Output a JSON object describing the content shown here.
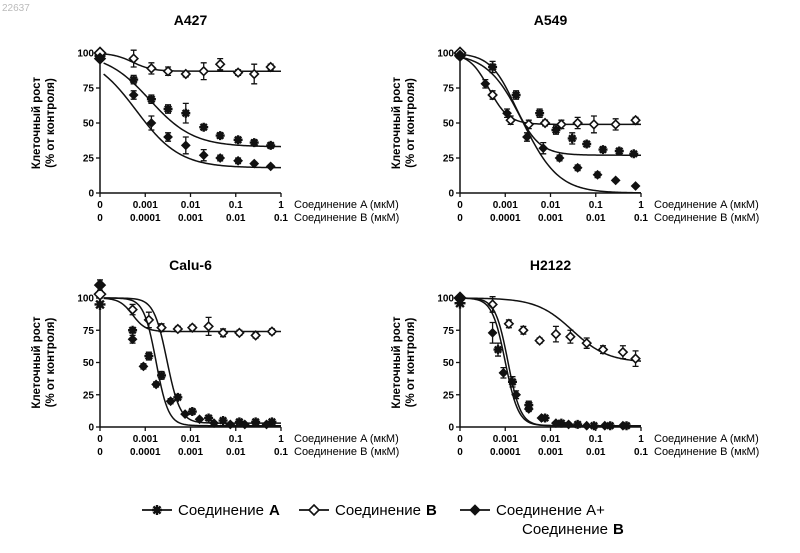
{
  "watermark": "22637",
  "legend": {
    "items": [
      {
        "key": "A",
        "label": "Соединение",
        "label_bold": "A"
      },
      {
        "key": "B",
        "label": "Соединение",
        "label_bold": "B"
      },
      {
        "key": "AB",
        "label": "Соединение A+",
        "label2": "Соединение",
        "label2_bold": "B"
      }
    ]
  },
  "chart_data": [
    {
      "type": "line",
      "title": "A427",
      "ylabel_line1": "Клеточный рост",
      "ylabel_line2": "(% от контроля)",
      "ylim": [
        0,
        100
      ],
      "yticks": [
        "0",
        "25",
        "50",
        "75",
        "100"
      ],
      "x_rows": [
        {
          "name": "Соединение A (мкМ)",
          "ticks": [
            "0",
            "0.001",
            "0.01",
            "0.1",
            "1"
          ]
        },
        {
          "name": "Соединение B (мкМ)",
          "ticks": [
            "0",
            "0.0001",
            "0.001",
            "0.01",
            "0.1"
          ]
        }
      ],
      "x_log": [
        0,
        0.25,
        0.5,
        0.75,
        1
      ],
      "series": [
        {
          "name": "Соединение A",
          "marker": "star",
          "x": [
            0,
            0.186,
            0.284,
            0.376,
            0.474,
            0.573,
            0.664,
            0.763,
            0.852,
            0.943
          ],
          "y": [
            98,
            81,
            67,
            60,
            57,
            47,
            41,
            38,
            36,
            34
          ],
          "err": [
            2,
            3,
            3,
            3,
            7,
            2,
            2,
            2,
            2,
            2
          ],
          "fit": {
            "bottom": 33,
            "top": 100,
            "ec50": 0.275,
            "hill": 0.9
          }
        },
        {
          "name": "Соединение B",
          "marker": "diamond-open",
          "x": [
            0,
            0.186,
            0.284,
            0.376,
            0.474,
            0.573,
            0.664,
            0.763,
            0.852,
            0.943
          ],
          "y": [
            100,
            96,
            89,
            87,
            85,
            87,
            92,
            86,
            85,
            90
          ],
          "err": [
            2,
            6,
            4,
            3,
            2,
            6,
            4,
            2,
            7,
            2
          ],
          "fit": {
            "bottom": 87,
            "top": 100,
            "ec50": 0.18,
            "hill": 2.0
          }
        },
        {
          "name": "Соединение A+Соединение B",
          "marker": "diamond-filled",
          "x": [
            0,
            0.186,
            0.284,
            0.376,
            0.474,
            0.573,
            0.664,
            0.763,
            0.852,
            0.943
          ],
          "y": [
            96,
            70,
            50,
            40,
            34,
            27,
            25,
            23,
            21,
            19
          ],
          "err": [
            2,
            3,
            5,
            3,
            6,
            4,
            2,
            2,
            1,
            1
          ],
          "fit": {
            "bottom": 18,
            "top": 100,
            "ec50": 0.2,
            "hill": 0.9
          }
        }
      ]
    },
    {
      "type": "line",
      "title": "A549",
      "ylabel_line1": "Клеточный рост",
      "ylabel_line2": "(% от контроля)",
      "ylim": [
        0,
        100
      ],
      "yticks": [
        "0",
        "25",
        "50",
        "75",
        "100"
      ],
      "x_rows": [
        {
          "name": "Соединение A (мкМ)",
          "ticks": [
            "0",
            "0.001",
            "0.01",
            "0.1",
            "1"
          ]
        },
        {
          "name": "Соединение B (мкМ)",
          "ticks": [
            "0",
            "0.0001",
            "0.001",
            "0.01",
            "0.1"
          ]
        }
      ],
      "x_log": [
        0,
        0.25,
        0.5,
        0.75,
        1
      ],
      "series": [
        {
          "name": "Соединение A",
          "marker": "star",
          "x": [
            0,
            0.18,
            0.31,
            0.44,
            0.53,
            0.62,
            0.7,
            0.79,
            0.88,
            0.96
          ],
          "y": [
            99,
            90,
            70,
            57,
            45,
            39,
            35,
            31,
            30,
            28
          ],
          "err": [
            2,
            4,
            3,
            3,
            3,
            4,
            2,
            2,
            2,
            1
          ],
          "fit": {
            "bottom": 27,
            "top": 100,
            "ec50": 0.3,
            "hill": 1.6
          }
        },
        {
          "name": "Соединение B",
          "marker": "diamond-open",
          "x": [
            0,
            0.18,
            0.28,
            0.38,
            0.47,
            0.56,
            0.65,
            0.74,
            0.86,
            0.97
          ],
          "y": [
            100,
            70,
            52,
            49,
            50,
            49,
            50,
            49,
            49,
            52
          ],
          "err": [
            2,
            3,
            3,
            3,
            2,
            3,
            4,
            6,
            4,
            2
          ],
          "fit": {
            "bottom": 49,
            "top": 100,
            "ec50": 0.16,
            "hill": 2.0
          }
        },
        {
          "name": "Соединение A+Соединение B",
          "marker": "diamond-filled",
          "x": [
            0,
            0.14,
            0.26,
            0.37,
            0.46,
            0.55,
            0.65,
            0.76,
            0.86,
            0.97
          ],
          "y": [
            98,
            78,
            57,
            40,
            32,
            25,
            18,
            13,
            9,
            5
          ],
          "err": [
            2,
            3,
            3,
            3,
            4,
            2,
            2,
            2,
            1,
            1
          ],
          "fit": {
            "bottom": 0,
            "top": 100,
            "ec50": 0.35,
            "hill": 1.1
          }
        }
      ]
    },
    {
      "type": "line",
      "title": "Calu-6",
      "ylabel_line1": "Клеточный рост",
      "ylabel_line2": "(% от контроля)",
      "ylim": [
        0,
        100
      ],
      "yticks": [
        "0",
        "25",
        "50",
        "75",
        "100"
      ],
      "x_rows": [
        {
          "name": "Соединение A (мкМ)",
          "ticks": [
            "0",
            "0.001",
            "0.01",
            "0.1",
            "1"
          ]
        },
        {
          "name": "Соединение B (мкМ)",
          "ticks": [
            "0",
            "0.0001",
            "0.001",
            "0.01",
            "0.1"
          ]
        }
      ],
      "x_log": [
        0,
        0.25,
        0.5,
        0.75,
        1
      ],
      "series": [
        {
          "name": "Соединение A",
          "marker": "star",
          "x": [
            0,
            0.18,
            0.27,
            0.34,
            0.43,
            0.51,
            0.6,
            0.68,
            0.77,
            0.86,
            0.95
          ],
          "y": [
            95,
            75,
            55,
            40,
            23,
            12,
            7,
            5,
            4,
            4,
            4
          ],
          "err": [
            2,
            2,
            3,
            3,
            2,
            2,
            1,
            1,
            1,
            1,
            1
          ],
          "fit": {
            "bottom": 3,
            "top": 100,
            "ec50": 0.37,
            "hill": 3.0
          }
        },
        {
          "name": "Соединение B",
          "marker": "diamond-open",
          "x": [
            0,
            0.18,
            0.27,
            0.34,
            0.43,
            0.51,
            0.6,
            0.68,
            0.77,
            0.86,
            0.95
          ],
          "y": [
            103,
            91,
            83,
            77,
            76,
            77,
            78,
            73,
            73,
            71,
            74
          ],
          "err": [
            3,
            4,
            6,
            3,
            2,
            2,
            7,
            3,
            2,
            2,
            2
          ],
          "fit": {
            "bottom": 74,
            "top": 100,
            "ec50": 0.18,
            "hill": 3.0
          }
        },
        {
          "name": "Соединение A+Соединение B",
          "marker": "diamond-filled",
          "x": [
            0,
            0.18,
            0.24,
            0.31,
            0.39,
            0.47,
            0.55,
            0.63,
            0.72,
            0.8,
            0.92
          ],
          "y": [
            110,
            68,
            47,
            33,
            20,
            10,
            6,
            3,
            2,
            2,
            2
          ],
          "err": [
            4,
            3,
            2,
            2,
            2,
            1,
            1,
            1,
            1,
            1,
            1
          ],
          "fit": {
            "bottom": 1,
            "top": 100,
            "ec50": 0.31,
            "hill": 3.2
          }
        }
      ]
    },
    {
      "type": "line",
      "title": "H2122",
      "ylabel_line1": "Клеточный рост",
      "ylabel_line2": "(% от контроля)",
      "ylim": [
        0,
        100
      ],
      "yticks": [
        "0",
        "25",
        "50",
        "75",
        "100"
      ],
      "x_rows": [
        {
          "name": "Соединение A (мкМ)",
          "ticks": [
            "0",
            "0.001",
            "0.01",
            "0.1",
            "1"
          ]
        },
        {
          "name": "Соединение B (мкМ)",
          "ticks": [
            "0",
            "0.0001",
            "0.001",
            "0.01",
            "0.1"
          ]
        }
      ],
      "x_log": [
        0,
        0.25,
        0.5,
        0.75,
        1
      ],
      "series": [
        {
          "name": "Соединение A",
          "marker": "star",
          "x": [
            0,
            0.21,
            0.29,
            0.38,
            0.47,
            0.56,
            0.65,
            0.74,
            0.83,
            0.92
          ],
          "y": [
            96,
            60,
            35,
            17,
            7,
            3,
            2,
            1,
            1,
            1
          ],
          "err": [
            2,
            5,
            4,
            3,
            2,
            1,
            1,
            1,
            1,
            1
          ],
          "fit": {
            "bottom": 1,
            "top": 100,
            "ec50": 0.25,
            "hill": 3.0
          }
        },
        {
          "name": "Соединение B",
          "marker": "diamond-open",
          "x": [
            0,
            0.18,
            0.27,
            0.35,
            0.44,
            0.53,
            0.61,
            0.7,
            0.79,
            0.9,
            0.97
          ],
          "y": [
            100,
            95,
            80,
            75,
            67,
            72,
            70,
            65,
            60,
            58,
            53
          ],
          "err": [
            2,
            6,
            3,
            3,
            2,
            6,
            5,
            4,
            3,
            5,
            6
          ],
          "fit": {
            "bottom": 50,
            "top": 100,
            "ec50": 0.62,
            "hill": 1.1
          }
        },
        {
          "name": "Соединение A+Соединение B",
          "marker": "diamond-filled",
          "x": [
            0,
            0.18,
            0.24,
            0.31,
            0.38,
            0.45,
            0.53,
            0.6,
            0.7,
            0.8,
            0.9
          ],
          "y": [
            100,
            73,
            42,
            25,
            14,
            7,
            3,
            2,
            1,
            1,
            1
          ],
          "err": [
            2,
            8,
            4,
            3,
            2,
            1,
            1,
            1,
            1,
            1,
            1
          ],
          "fit": {
            "bottom": 1,
            "top": 100,
            "ec50": 0.265,
            "hill": 3.1
          }
        }
      ]
    }
  ]
}
